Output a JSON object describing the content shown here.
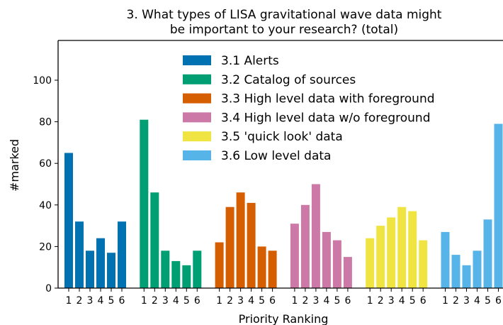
{
  "chart_data": {
    "type": "bar",
    "title_line1": "3. What types of LISA gravitational wave data might",
    "title_line2": "be important to your research? (total)",
    "xlabel": "Priority Ranking",
    "ylabel": "#marked",
    "ylim": [
      0,
      118
    ],
    "yticks": [
      0,
      20,
      40,
      60,
      80,
      100
    ],
    "categories": [
      "1",
      "2",
      "3",
      "4",
      "5",
      "6"
    ],
    "grid": false,
    "legend_position": "top-center",
    "series": [
      {
        "name": "3.1 Alerts",
        "color": "#0072b2",
        "values": [
          65,
          32,
          18,
          24,
          17,
          32
        ]
      },
      {
        "name": "3.2 Catalog of sources",
        "color": "#009e73",
        "values": [
          81,
          46,
          18,
          13,
          11,
          18
        ]
      },
      {
        "name": "3.3 High level data with foreground",
        "color": "#d55e00",
        "values": [
          22,
          39,
          46,
          41,
          20,
          18
        ]
      },
      {
        "name": "3.4 High level data w/o foreground",
        "color": "#cc79a7",
        "values": [
          31,
          40,
          50,
          27,
          23,
          15
        ]
      },
      {
        "name": "3.5 'quick look' data",
        "color": "#f0e442",
        "values": [
          24,
          30,
          34,
          39,
          37,
          23
        ]
      },
      {
        "name": "3.6 Low level data",
        "color": "#56b4e9",
        "values": [
          27,
          16,
          11,
          18,
          33,
          79
        ]
      }
    ]
  }
}
